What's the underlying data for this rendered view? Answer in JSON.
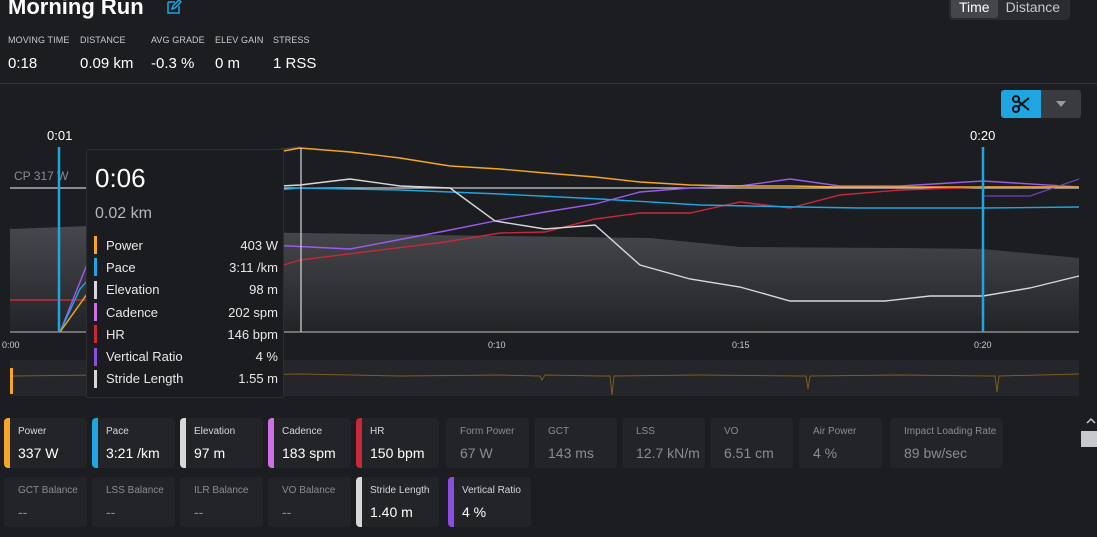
{
  "header": {
    "title": "Morning Run",
    "view_toggle": [
      "Time",
      "Distance"
    ],
    "active_view": "Time"
  },
  "stats": [
    {
      "label": "MOVING TIME",
      "value": "0:18"
    },
    {
      "label": "DISTANCE",
      "value": "0.09 km"
    },
    {
      "label": "AVG GRADE",
      "value": "-0.3 %"
    },
    {
      "label": "ELEV GAIN",
      "value": "0 m"
    },
    {
      "label": "STRESS",
      "value": "1 RSS"
    }
  ],
  "toolbar": {
    "scissor_icon": "scissors-icon",
    "dropdown_icon": "chevron-down-icon"
  },
  "chart": {
    "cp_label": "CP 317 W",
    "marker_left": "0:01",
    "marker_right": "0:20",
    "x_ticks": [
      "0:00",
      "0:10",
      "0:15",
      "0:20"
    ]
  },
  "tooltip": {
    "time": "0:06",
    "distance": "0.02 km",
    "rows": [
      {
        "name": "Power",
        "value": "403 W",
        "color": "#f5a623"
      },
      {
        "name": "Pace",
        "value": "3:11 /km",
        "color": "#1fa5e0"
      },
      {
        "name": "Elevation",
        "value": "98 m",
        "color": "#d8d8da"
      },
      {
        "name": "Cadence",
        "value": "202 spm",
        "color": "#cf6fe8"
      },
      {
        "name": "HR",
        "value": "146 bpm",
        "color": "#c8283a"
      },
      {
        "name": "Vertical Ratio",
        "value": "4 %",
        "color": "#8a4fe0"
      },
      {
        "name": "Stride Length",
        "value": "1.55 m",
        "color": "#d8d8da"
      }
    ]
  },
  "tiles_row1": [
    {
      "label": "Power",
      "value": "337 W",
      "color": "#f5a623",
      "dim": false
    },
    {
      "label": "Pace",
      "value": "3:21 /km",
      "color": "#1fa5e0",
      "dim": false
    },
    {
      "label": "Elevation",
      "value": "97 m",
      "color": "#d8d8da",
      "dim": false
    },
    {
      "label": "Cadence",
      "value": "183 spm",
      "color": "#cf6fe8",
      "dim": false
    },
    {
      "label": "HR",
      "value": "150 bpm",
      "color": "#c8283a",
      "dim": false
    },
    {
      "label": "Form Power",
      "value": "67 W",
      "color": "",
      "dim": true
    },
    {
      "label": "GCT",
      "value": "143 ms",
      "color": "",
      "dim": true
    },
    {
      "label": "LSS",
      "value": "12.7 kN/m",
      "color": "",
      "dim": true
    },
    {
      "label": "VO",
      "value": "6.51 cm",
      "color": "",
      "dim": true
    },
    {
      "label": "Air Power",
      "value": "4 %",
      "color": "",
      "dim": true
    },
    {
      "label": "Impact Loading Rate",
      "value": "89 bw/sec",
      "color": "",
      "dim": true
    }
  ],
  "tiles_row2": [
    {
      "label": "GCT Balance",
      "value": "--",
      "color": "",
      "dim": true
    },
    {
      "label": "LSS Balance",
      "value": "--",
      "color": "",
      "dim": true
    },
    {
      "label": "ILR Balance",
      "value": "--",
      "color": "",
      "dim": true
    },
    {
      "label": "VO Balance",
      "value": "--",
      "color": "",
      "dim": true
    },
    {
      "label": "Stride Length",
      "value": "1.40 m",
      "color": "#d8d8da",
      "dim": false
    },
    {
      "label": "Vertical Ratio",
      "value": "4 %",
      "color": "#8a4fe0",
      "dim": false
    }
  ]
}
